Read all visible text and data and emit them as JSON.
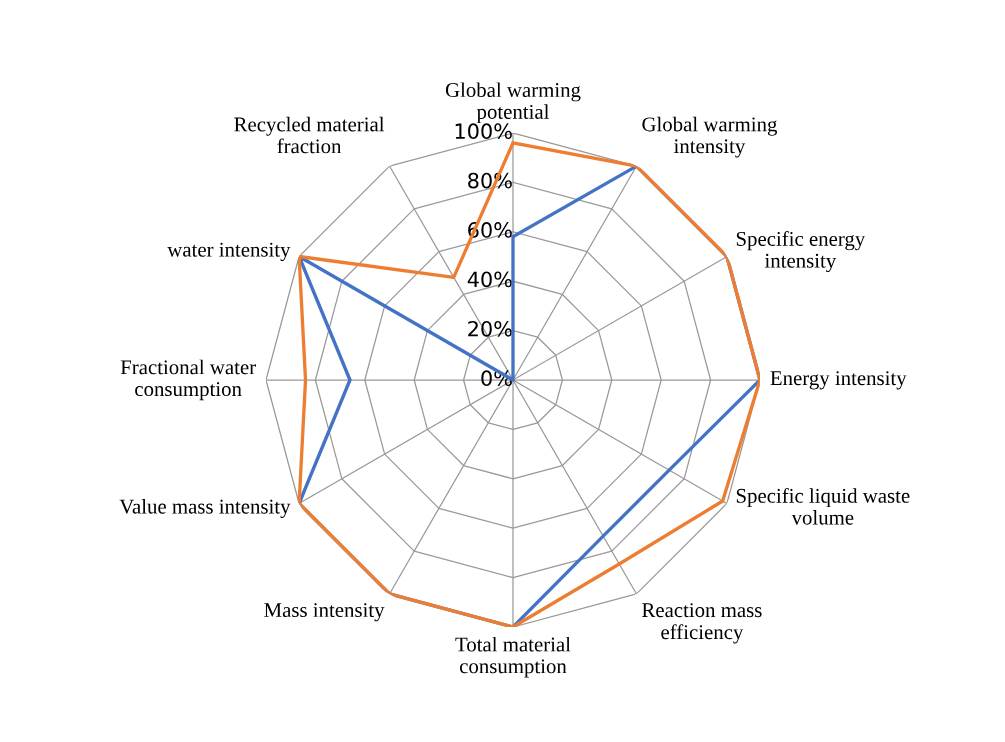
{
  "chart_data": {
    "type": "radar",
    "categories": [
      "Global warming\npotential",
      "Global warming\nintensity",
      "Specific energy\nintensity",
      "Energy intensity",
      "Specific liquid waste\nvolume",
      "Reaction mass\nefficiency",
      "Total material\nconsumption",
      "Mass intensity",
      "Value mass intensity",
      "Fractional water\nconsumption",
      "water intensity",
      "Recycled material\nfraction"
    ],
    "series": [
      {
        "color": "#4472c4",
        "values": [
          58,
          100,
          100,
          100,
          73,
          73,
          100,
          100,
          100,
          66,
          100,
          0
        ]
      },
      {
        "color": "#ed7d31",
        "values": [
          96,
          100,
          100,
          100,
          98,
          86,
          100,
          100,
          100,
          84,
          100,
          48
        ]
      }
    ],
    "ylim": [
      0,
      100
    ],
    "yticks": [
      {
        "value": 0,
        "label": "0%"
      },
      {
        "value": 20,
        "label": "20%"
      },
      {
        "value": 40,
        "label": "40%"
      },
      {
        "value": 60,
        "label": "60%"
      },
      {
        "value": 80,
        "label": "80%"
      },
      {
        "value": 100,
        "label": "100%"
      }
    ],
    "grid": true,
    "marker": "none",
    "line_style": "solid"
  }
}
